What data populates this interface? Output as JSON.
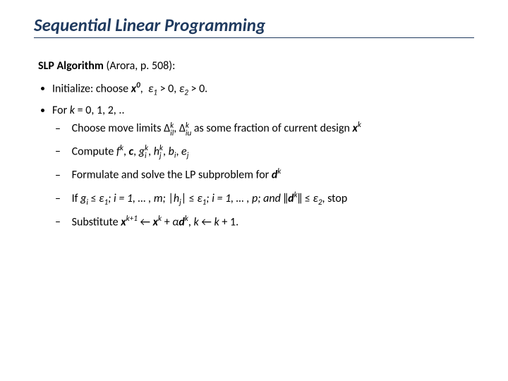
{
  "title": "Sequential Linear Programming",
  "alg": {
    "label": "SLP Algorithm",
    "ref": " (Arora, p. 508):"
  },
  "init": {
    "prefix": "Initialize: choose  ",
    "x": "x",
    "xsup": "0",
    "e1": "ε",
    "e1sub": "1",
    "gt1": " > 0, ",
    "e2": "ε",
    "e2sub": "2",
    "gt2": " > 0."
  },
  "forline": {
    "prefix": "For ",
    "k": "k",
    "rest": " = 0, 1, 2, .."
  },
  "choose": {
    "prefix": "Choose move limits ",
    "D1": "Δ",
    "D1sup": "k",
    "D1sub": "il",
    "comma": ", ",
    "D2": "Δ",
    "D2sup": "k",
    "D2sub": "iu",
    "rest": " as some fraction of current design ",
    "x": "x",
    "xsup": "k"
  },
  "compute": {
    "prefix": "Compute ",
    "f": "f",
    "fsup": "k",
    "sep1": ", ",
    "c": "c",
    "sep2": ",  ",
    "g": "g",
    "gsup": "k",
    "gsub": "i",
    "sep3": ", ",
    "h": "h",
    "hsup": "k",
    "hsub": "j",
    "sep4": ", ",
    "b": "b",
    "bsub": "i",
    "sep5": ", ",
    "e": "e",
    "esub": "j"
  },
  "formulate": {
    "prefix": "Formulate and solve the LP subproblem for ",
    "d": "d",
    "dsup": "k"
  },
  "ifline": {
    "prefix": "If  ",
    "g": "g",
    "gsub": "i",
    "le1": " ≤ ",
    "e1": "ε",
    "e1sub": "1",
    "range1": "; i = 1, … , m; ",
    "abs_l1": "|",
    "h": "h",
    "hsub": "j",
    "abs_r1": "|",
    "le2": " ≤ ",
    "e2": "ε",
    "e2sub": "1",
    "range2": "; i = 1, … , p; and ",
    "norm_l": "‖",
    "d": "d",
    "dsup": "k",
    "norm_r": "‖",
    "le3": " ≤ ",
    "e3": "ε",
    "e3sub": "2",
    "stop": ", stop"
  },
  "subst": {
    "prefix": "Substitute  ",
    "x1": "x",
    "x1sup": "k+1",
    "arrow1": " ← ",
    "x2": "x",
    "x2sup": "k",
    "plus": " + ",
    "a": "α",
    "d": "d",
    "dsup": "k",
    "comma": ",   ",
    "k1": "k",
    "arrow2": " ← ",
    "k2": "k",
    "plus1": " + 1."
  }
}
